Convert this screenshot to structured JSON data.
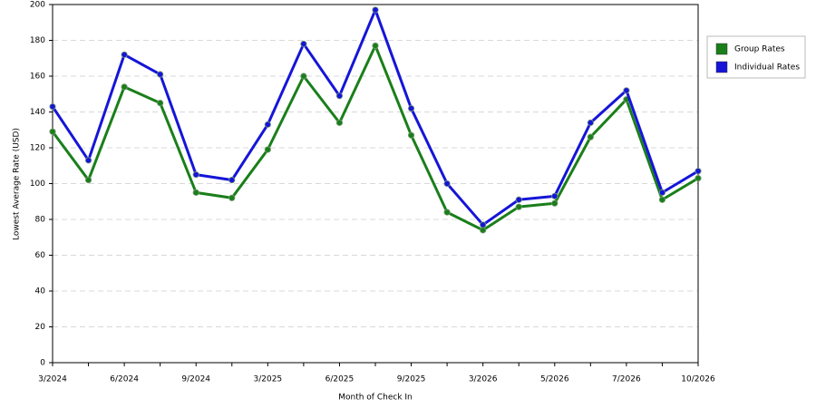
{
  "chart_data": {
    "type": "line",
    "x_label": "Month of Check In",
    "y_label": "Lowest Average Rate (USD)",
    "categories": [
      "3/2024",
      null,
      "6/2024",
      null,
      "9/2024",
      null,
      "3/2025",
      null,
      "6/2025",
      null,
      "9/2025",
      null,
      "3/2026",
      null,
      "5/2026",
      null,
      "7/2026",
      null,
      "10/2026"
    ],
    "series": [
      {
        "name": "Group Rates",
        "color": "#1a7f1a",
        "values": [
          129,
          102,
          154,
          145,
          95,
          92,
          119,
          160,
          134,
          177,
          127,
          84,
          74,
          87,
          89,
          126,
          147,
          91,
          103
        ]
      },
      {
        "name": "Individual Rates",
        "color": "#1515d8",
        "values": [
          143,
          113,
          172,
          161,
          105,
          102,
          133,
          178,
          149,
          197,
          142,
          100,
          77,
          91,
          93,
          134,
          152,
          95,
          107
        ]
      }
    ],
    "ylim": [
      0,
      200
    ],
    "yticks": [
      0,
      20,
      40,
      60,
      80,
      100,
      120,
      140,
      160,
      180,
      200
    ],
    "grid": true,
    "legend": "right"
  }
}
